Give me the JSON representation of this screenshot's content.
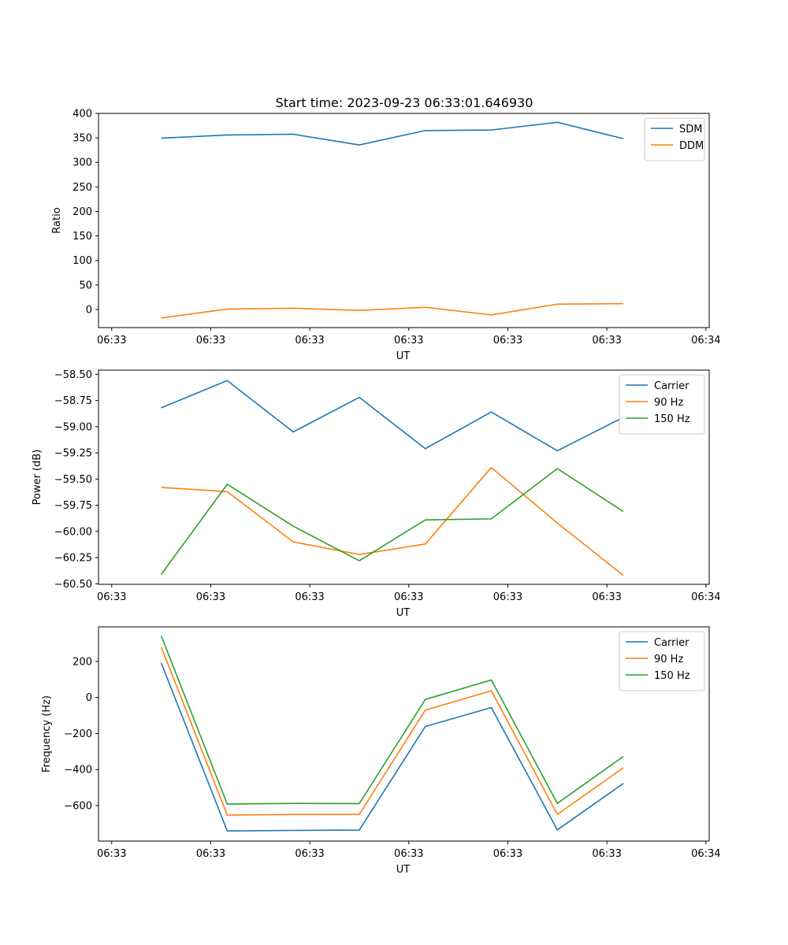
{
  "figure": {
    "title": "Start time: 2023-09-23 06:33:01.646930"
  },
  "colors": {
    "blue": "#1f77b4",
    "orange": "#ff7f0e",
    "green": "#2ca02c"
  },
  "chart_data": [
    {
      "type": "line",
      "title": "Start time: 2023-09-23 06:33:01.646930",
      "xlabel": "UT",
      "ylabel": "Ratio",
      "x": [
        0.75,
        1.75,
        2.75,
        3.75,
        4.75,
        5.75,
        6.75,
        7.75
      ],
      "x_ticks": [
        0,
        1.5,
        3,
        4.5,
        6,
        7.5,
        9
      ],
      "x_tick_labels": [
        "06:33",
        "06:33",
        "06:33",
        "06:33",
        "06:33",
        "06:33",
        "06:34"
      ],
      "xlim": [
        -0.2,
        9.05
      ],
      "ylim": [
        -37,
        400
      ],
      "y_ticks": [
        0,
        50,
        100,
        150,
        200,
        250,
        300,
        350,
        400
      ],
      "y_tick_labels": [
        "0",
        "50",
        "100",
        "150",
        "200",
        "250",
        "300",
        "350",
        "400"
      ],
      "legend": "top-right",
      "series": [
        {
          "name": "SDM",
          "color": "#1f77b4",
          "values": [
            349.5,
            355.9,
            357.5,
            335.6,
            365.0,
            366.1,
            381.9,
            348.4
          ]
        },
        {
          "name": "DDM",
          "color": "#ff7f0e",
          "values": [
            -17.4,
            0.9,
            2.5,
            -1.9,
            4.5,
            -11.1,
            10.9,
            11.8
          ]
        }
      ]
    },
    {
      "type": "line",
      "title": "",
      "xlabel": "UT",
      "ylabel": "Power (dB)",
      "x": [
        0.75,
        1.75,
        2.75,
        3.75,
        4.75,
        5.75,
        6.75,
        7.75
      ],
      "x_ticks": [
        0,
        1.5,
        3,
        4.5,
        6,
        7.5,
        9
      ],
      "x_tick_labels": [
        "06:33",
        "06:33",
        "06:33",
        "06:33",
        "06:33",
        "06:33",
        "06:34"
      ],
      "xlim": [
        -0.2,
        9.05
      ],
      "ylim": [
        -60.505,
        -58.46
      ],
      "y_ticks": [
        -60.5,
        -60.25,
        -60.0,
        -59.75,
        -59.5,
        -59.25,
        -59.0,
        -58.75,
        -58.5
      ],
      "y_tick_labels": [
        "−60.50",
        "−60.25",
        "−60.00",
        "−59.75",
        "−59.50",
        "−59.25",
        "−59.00",
        "−58.75",
        "−58.50"
      ],
      "legend": "top-right",
      "series": [
        {
          "name": "Carrier",
          "color": "#1f77b4",
          "values": [
            -58.82,
            -58.56,
            -59.05,
            -58.72,
            -59.21,
            -58.86,
            -59.23,
            -58.91
          ]
        },
        {
          "name": "90 Hz",
          "color": "#ff7f0e",
          "values": [
            -59.58,
            -59.62,
            -60.1,
            -60.22,
            -60.12,
            -59.39,
            -59.92,
            -60.42
          ]
        },
        {
          "name": "150 Hz",
          "color": "#2ca02c",
          "values": [
            -60.41,
            -59.55,
            -59.95,
            -60.28,
            -59.89,
            -59.88,
            -59.4,
            -59.81
          ]
        }
      ]
    },
    {
      "type": "line",
      "title": "",
      "xlabel": "UT",
      "ylabel": "Frequency (Hz)",
      "x": [
        0.75,
        1.75,
        2.75,
        3.75,
        4.75,
        5.75,
        6.75,
        7.75
      ],
      "x_ticks": [
        0,
        1.5,
        3,
        4.5,
        6,
        7.5,
        9
      ],
      "x_tick_labels": [
        "06:33",
        "06:33",
        "06:33",
        "06:33",
        "06:33",
        "06:33",
        "06:34"
      ],
      "xlim": [
        -0.2,
        9.05
      ],
      "ylim": [
        -797,
        392
      ],
      "y_ticks": [
        -600,
        -400,
        -200,
        0,
        200
      ],
      "y_tick_labels": [
        "−600",
        "−400",
        "−200",
        "0",
        "200"
      ],
      "legend": "top-right",
      "series": [
        {
          "name": "Carrier",
          "color": "#1f77b4",
          "values": [
            192,
            -741,
            -738,
            -736,
            -161,
            -56,
            -735,
            -477
          ]
        },
        {
          "name": "90 Hz",
          "color": "#ff7f0e",
          "values": [
            281,
            -653,
            -649,
            -649,
            -70,
            37,
            -649,
            -390
          ]
        },
        {
          "name": "150 Hz",
          "color": "#2ca02c",
          "values": [
            342,
            -592,
            -588,
            -589,
            -11,
            97,
            -588,
            -327
          ]
        }
      ]
    }
  ]
}
